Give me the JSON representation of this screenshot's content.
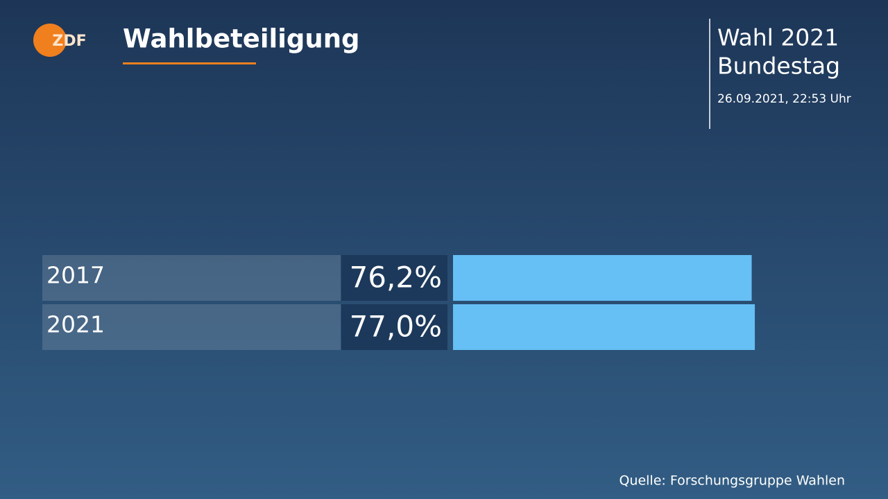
{
  "logo": "ZDF",
  "header": {
    "network_label": "Wahl 2021",
    "election": "Bundestag",
    "timestamp": "26.09.2021, 22:53 Uhr"
  },
  "source": "Quelle: Forschungsgruppe Wahlen",
  "chart_data": {
    "type": "bar",
    "orientation": "horizontal",
    "title": "Wahlbeteiligung",
    "categories": [
      "2017",
      "2021"
    ],
    "values": [
      76.2,
      77.0
    ],
    "value_labels": [
      "76,2%",
      "77,0%"
    ],
    "color": "#66bff5",
    "xlim": [
      0,
      100
    ]
  }
}
